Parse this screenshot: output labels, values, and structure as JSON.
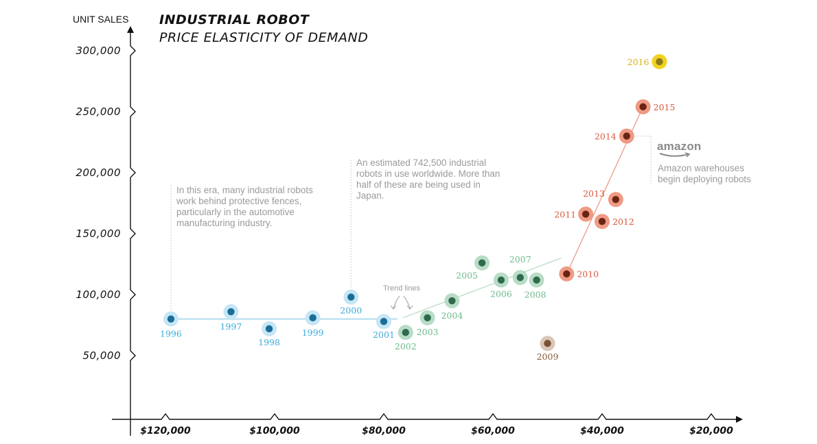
{
  "chart_data": {
    "type": "scatter",
    "title": "INDUSTRIAL ROBOT",
    "subtitle": "PRICE ELASTICITY OF DEMAND",
    "ylabel": "UNIT SALES",
    "xlabel": "",
    "x_reversed": true,
    "xlim": [
      20000,
      120000
    ],
    "ylim": [
      0,
      300000
    ],
    "x_ticks": [
      {
        "value": 120000,
        "label": "$120,000"
      },
      {
        "value": 100000,
        "label": "$100,000"
      },
      {
        "value": 80000,
        "label": "$80,000"
      },
      {
        "value": 60000,
        "label": "$60,000"
      },
      {
        "value": 40000,
        "label": "$40,000"
      },
      {
        "value": 20000,
        "label": "$20,000"
      }
    ],
    "y_ticks": [
      {
        "value": 50000,
        "label": "50,000"
      },
      {
        "value": 100000,
        "label": "100,000"
      },
      {
        "value": 150000,
        "label": "150,000"
      },
      {
        "value": 200000,
        "label": "200,000"
      },
      {
        "value": 250000,
        "label": "250,000"
      },
      {
        "value": 300000,
        "label": "300,000"
      }
    ],
    "grid": false,
    "points": [
      {
        "label": "1996",
        "x": 119000,
        "y": 80000,
        "group": "blue"
      },
      {
        "label": "1997",
        "x": 108000,
        "y": 86000,
        "group": "blue"
      },
      {
        "label": "1998",
        "x": 101000,
        "y": 72000,
        "group": "blue"
      },
      {
        "label": "1999",
        "x": 93000,
        "y": 81000,
        "group": "blue"
      },
      {
        "label": "2000",
        "x": 86000,
        "y": 98000,
        "group": "blue"
      },
      {
        "label": "2001",
        "x": 80000,
        "y": 78000,
        "group": "blue"
      },
      {
        "label": "2002",
        "x": 76000,
        "y": 69000,
        "group": "green"
      },
      {
        "label": "2003",
        "x": 72000,
        "y": 81000,
        "group": "green"
      },
      {
        "label": "2004",
        "x": 67500,
        "y": 95000,
        "group": "green"
      },
      {
        "label": "2005",
        "x": 62000,
        "y": 126000,
        "group": "green"
      },
      {
        "label": "2006",
        "x": 58500,
        "y": 112000,
        "group": "green"
      },
      {
        "label": "2007",
        "x": 55000,
        "y": 114000,
        "group": "green"
      },
      {
        "label": "2008",
        "x": 52000,
        "y": 112000,
        "group": "green"
      },
      {
        "label": "2009",
        "x": 50000,
        "y": 60000,
        "group": "brown"
      },
      {
        "label": "2010",
        "x": 46500,
        "y": 117000,
        "group": "red"
      },
      {
        "label": "2011",
        "x": 43000,
        "y": 166000,
        "group": "red"
      },
      {
        "label": "2012",
        "x": 40000,
        "y": 160000,
        "group": "red"
      },
      {
        "label": "2013",
        "x": 37500,
        "y": 178000,
        "group": "red"
      },
      {
        "label": "2014",
        "x": 35500,
        "y": 230000,
        "group": "red"
      },
      {
        "label": "2015",
        "x": 32500,
        "y": 254000,
        "group": "red"
      },
      {
        "label": "2016",
        "x": 29500,
        "y": 291000,
        "group": "yellow"
      }
    ],
    "trend_lines": [
      {
        "group": "blue",
        "x": [
          119000,
          77500
        ],
        "y": [
          80000,
          80000
        ]
      },
      {
        "group": "green",
        "x": [
          76500,
          47500
        ],
        "y": [
          81000,
          130000
        ]
      },
      {
        "group": "red",
        "x": [
          46500,
          32500
        ],
        "y": [
          117000,
          254000
        ]
      }
    ],
    "annotations": [
      {
        "text": "Trend lines"
      }
    ]
  },
  "notes": {
    "fences": "In this era, many industrial robots work behind protective fences, particularly in the automotive manufacturing industry.",
    "japan": "An estimated 742,500 industrial robots in use worldwide. More than half of these are being used in Japan.",
    "amazon_logo": "amazon",
    "amazon": "Amazon warehouses begin deploying robots"
  },
  "colors": {
    "blue_outer": "#c6e6f5",
    "blue_inner": "#1a6d98",
    "blue_label": "#3aaadb",
    "blue_line": "#bfe2f2",
    "green_outer": "#b9dcc6",
    "green_inner": "#2e6a4d",
    "green_label": "#6dbb8b",
    "green_line": "#b7dcc4",
    "red_outer": "#ef9a84",
    "red_inner": "#6a2414",
    "red_label": "#d9593f",
    "red_line": "#ef9a84",
    "brown_outer": "#d9c6b8",
    "brown_inner": "#7a5134",
    "brown_label": "#8a5a34",
    "yellow_outer": "#f2d21f",
    "yellow_inner": "#8a7a1a",
    "yellow_label": "#d6b21b",
    "axis": "#111111",
    "note": "#9a9a9a"
  }
}
